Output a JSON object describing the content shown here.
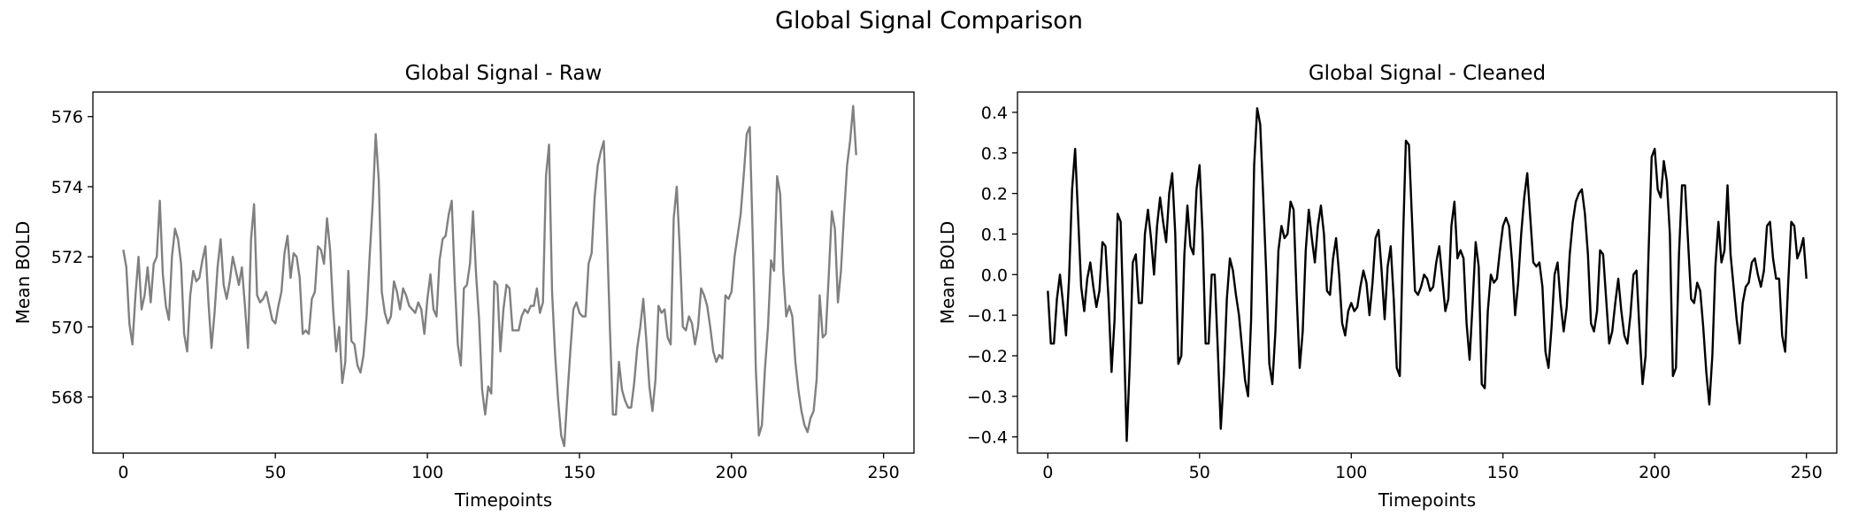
{
  "figure": {
    "title": "Global Signal Comparison"
  },
  "chart_data": [
    {
      "type": "line",
      "title": "Global Signal - Raw",
      "xlabel": "Timepoints",
      "ylabel": "Mean BOLD",
      "xlim": [
        -10,
        260
      ],
      "ylim": [
        566.4,
        576.7
      ],
      "xticks": [
        0,
        50,
        100,
        150,
        200,
        250
      ],
      "yticks": [
        568,
        570,
        572,
        574,
        576
      ],
      "grid": false,
      "color": "#808080",
      "series": [
        {
          "values": [
            572.2,
            571.7,
            570.1,
            569.5,
            570.9,
            572.0,
            570.5,
            570.9,
            571.7,
            570.7,
            571.8,
            572.0,
            573.6,
            571.5,
            570.6,
            570.2,
            572.0,
            572.8,
            572.5,
            571.8,
            569.8,
            569.3,
            570.9,
            571.6,
            571.3,
            571.4,
            571.9,
            572.3,
            570.7,
            569.4,
            570.4,
            571.7,
            572.5,
            571.2,
            570.8,
            571.3,
            572.0,
            571.6,
            571.2,
            571.7,
            570.6,
            569.4,
            572.5,
            573.5,
            570.9,
            570.7,
            570.8,
            571.0,
            570.6,
            570.2,
            570.1,
            570.6,
            571.0,
            572.1,
            572.6,
            571.4,
            572.1,
            572.0,
            571.4,
            569.8,
            569.9,
            569.8,
            570.8,
            571.0,
            572.3,
            572.2,
            571.8,
            573.1,
            572.2,
            570.5,
            569.3,
            570.0,
            568.4,
            569.0,
            571.6,
            569.6,
            569.5,
            568.9,
            568.7,
            569.2,
            570.3,
            572.0,
            573.5,
            575.5,
            574.2,
            571.0,
            570.4,
            570.1,
            570.3,
            571.3,
            571.0,
            570.5,
            571.1,
            570.9,
            570.6,
            570.5,
            570.4,
            570.7,
            570.5,
            569.8,
            570.8,
            571.5,
            570.5,
            570.3,
            571.9,
            572.5,
            572.6,
            573.2,
            573.6,
            571.3,
            569.5,
            568.9,
            571.1,
            571.2,
            571.8,
            573.3,
            571.5,
            570.2,
            568.2,
            567.5,
            568.3,
            568.1,
            571.3,
            571.2,
            569.3,
            570.5,
            571.2,
            571.1,
            569.9,
            569.9,
            569.9,
            570.3,
            570.5,
            570.4,
            570.6,
            570.6,
            571.1,
            570.4,
            570.7,
            574.3,
            575.2,
            571.0,
            569.2,
            567.9,
            566.9,
            566.6,
            568.0,
            569.3,
            570.5,
            570.7,
            570.4,
            570.3,
            570.3,
            571.8,
            572.1,
            573.7,
            574.6,
            575.0,
            575.3,
            572.8,
            570.0,
            567.5,
            567.5,
            569.0,
            568.2,
            567.9,
            567.7,
            567.7,
            568.4,
            569.4,
            570.0,
            570.8,
            569.6,
            568.3,
            567.6,
            568.5,
            570.6,
            570.4,
            570.5,
            569.7,
            569.5,
            573.1,
            574.0,
            572.2,
            570.0,
            569.9,
            570.3,
            570.1,
            569.5,
            570.0,
            571.1,
            570.9,
            570.6,
            570.0,
            569.3,
            569.0,
            569.2,
            569.1,
            570.9,
            570.8,
            571.0,
            572.0,
            572.6,
            573.2,
            574.3,
            575.5,
            575.7,
            572.5,
            568.8,
            566.9,
            567.2,
            568.8,
            570.0,
            571.9,
            571.6,
            574.3,
            573.8,
            571.6,
            570.3,
            570.6,
            570.3,
            569.0,
            568.2,
            567.6,
            567.2,
            567.0,
            567.4,
            567.6,
            568.5,
            570.9,
            569.7,
            569.8,
            571.5,
            573.3,
            572.8,
            570.7,
            571.6,
            573.2,
            574.6,
            575.3,
            576.3,
            574.9
          ]
        }
      ]
    },
    {
      "type": "line",
      "title": "Global Signal - Cleaned",
      "xlabel": "Timepoints",
      "ylabel": "Mean BOLD",
      "xlim": [
        -10,
        260
      ],
      "ylim": [
        -0.44,
        0.45
      ],
      "xticks": [
        0,
        50,
        100,
        150,
        200,
        250
      ],
      "yticks": [
        -0.4,
        -0.3,
        -0.2,
        -0.1,
        0.0,
        0.1,
        0.2,
        0.3,
        0.4
      ],
      "grid": false,
      "color": "#000000",
      "series": [
        {
          "values": [
            -0.04,
            -0.17,
            -0.17,
            -0.06,
            0.0,
            -0.07,
            -0.15,
            -0.01,
            0.21,
            0.31,
            0.14,
            -0.03,
            -0.09,
            -0.01,
            0.03,
            -0.03,
            -0.08,
            -0.04,
            0.08,
            0.07,
            -0.06,
            -0.24,
            -0.11,
            0.15,
            0.13,
            -0.13,
            -0.41,
            -0.22,
            0.03,
            0.05,
            -0.07,
            -0.07,
            0.1,
            0.16,
            0.09,
            0.0,
            0.12,
            0.19,
            0.13,
            0.08,
            0.2,
            0.25,
            0.1,
            -0.22,
            -0.2,
            0.05,
            0.17,
            0.07,
            0.05,
            0.21,
            0.27,
            0.1,
            -0.17,
            -0.17,
            0.0,
            0.0,
            -0.18,
            -0.38,
            -0.25,
            -0.06,
            0.04,
            0.01,
            -0.05,
            -0.1,
            -0.18,
            -0.26,
            -0.3,
            -0.11,
            0.27,
            0.41,
            0.37,
            0.19,
            0.0,
            -0.22,
            -0.27,
            -0.14,
            0.06,
            0.12,
            0.09,
            0.1,
            0.18,
            0.16,
            -0.05,
            -0.23,
            -0.14,
            0.06,
            0.16,
            0.09,
            0.03,
            0.12,
            0.17,
            0.1,
            -0.04,
            -0.05,
            0.04,
            0.09,
            0.0,
            -0.12,
            -0.15,
            -0.09,
            -0.07,
            -0.09,
            -0.08,
            -0.03,
            0.01,
            -0.02,
            -0.1,
            -0.02,
            0.09,
            0.11,
            0.01,
            -0.11,
            0.02,
            0.07,
            -0.06,
            -0.23,
            -0.25,
            0.07,
            0.33,
            0.32,
            0.14,
            -0.04,
            -0.05,
            -0.03,
            0.0,
            -0.01,
            -0.04,
            -0.03,
            0.03,
            0.07,
            -0.01,
            -0.09,
            -0.06,
            0.12,
            0.18,
            0.04,
            0.06,
            0.04,
            -0.12,
            -0.21,
            -0.07,
            0.08,
            0.02,
            -0.27,
            -0.28,
            -0.09,
            0.0,
            -0.02,
            -0.01,
            0.06,
            0.12,
            0.14,
            0.12,
            0.03,
            -0.1,
            -0.02,
            0.1,
            0.19,
            0.25,
            0.14,
            0.03,
            0.02,
            0.03,
            -0.03,
            -0.19,
            -0.23,
            -0.13,
            0.0,
            0.03,
            -0.07,
            -0.14,
            -0.08,
            0.05,
            0.13,
            0.18,
            0.2,
            0.21,
            0.15,
            0.05,
            -0.12,
            -0.14,
            -0.09,
            0.06,
            0.05,
            -0.06,
            -0.17,
            -0.14,
            -0.07,
            -0.01,
            -0.09,
            -0.15,
            -0.17,
            -0.1,
            0.0,
            0.01,
            -0.14,
            -0.27,
            -0.2,
            0.06,
            0.29,
            0.31,
            0.21,
            0.19,
            0.28,
            0.23,
            0.1,
            -0.25,
            -0.23,
            0.05,
            0.22,
            0.22,
            0.08,
            -0.06,
            -0.07,
            -0.02,
            -0.04,
            -0.13,
            -0.24,
            -0.32,
            -0.2,
            0.02,
            0.13,
            0.03,
            0.06,
            0.22,
            0.05,
            -0.03,
            -0.11,
            -0.17,
            -0.07,
            -0.03,
            -0.02,
            0.03,
            0.04,
            0.0,
            -0.03,
            0.01,
            0.12,
            0.13,
            0.04,
            -0.01,
            -0.01,
            -0.15,
            -0.19,
            -0.02,
            0.13,
            0.12,
            0.04,
            0.06,
            0.09,
            -0.01
          ]
        }
      ]
    }
  ]
}
